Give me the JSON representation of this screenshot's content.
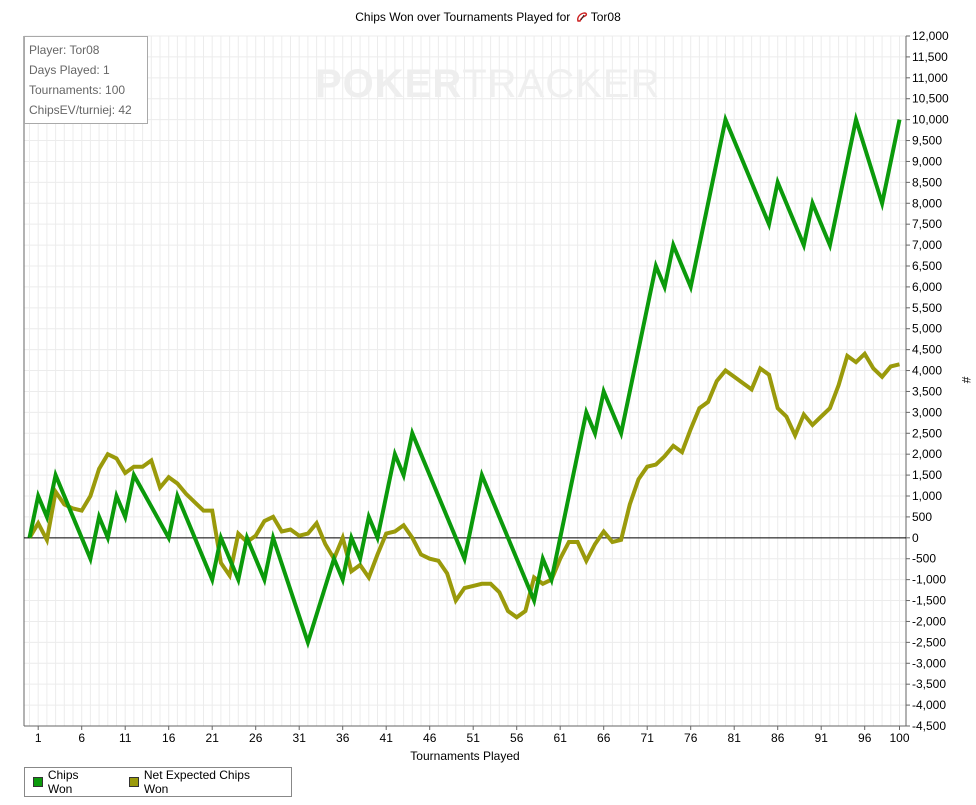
{
  "title": "Chips Won over Tournaments Played for",
  "player_name": "Tor08",
  "watermark": {
    "bold": "POKER",
    "light": "TRACKER"
  },
  "info": {
    "player": "Player: Tor08",
    "days": "Days Played: 1",
    "tournaments": "Tournaments: 100",
    "chipsev": "ChipsEV/turniej: 42"
  },
  "legend": [
    {
      "label": "Chips Won",
      "color": "#0b9a0b"
    },
    {
      "label": "Net Expected Chips Won",
      "color": "#9a9a0b"
    }
  ],
  "chart_data": {
    "type": "line",
    "title": "Chips Won over Tournaments Played for Tor08",
    "xlabel": "Tournaments Played",
    "ylabel": "#",
    "xlim": [
      0,
      100
    ],
    "ylim": [
      -4500,
      12000
    ],
    "x_ticks": [
      1,
      6,
      11,
      16,
      21,
      26,
      31,
      36,
      41,
      46,
      51,
      56,
      61,
      66,
      71,
      76,
      81,
      86,
      91,
      96,
      100
    ],
    "y_ticks": [
      12000,
      11500,
      11000,
      10500,
      10000,
      9500,
      9000,
      8500,
      8000,
      7500,
      7000,
      6500,
      6000,
      5500,
      5000,
      4500,
      4000,
      3500,
      3000,
      2500,
      2000,
      1500,
      1000,
      500,
      0,
      -500,
      -1000,
      -1500,
      -2000,
      -2500,
      -3000,
      -3500,
      -4000,
      -4500
    ],
    "y_tick_labels": [
      "12,000",
      "11,500",
      "11,000",
      "10,500",
      "10,000",
      "9,500",
      "9,000",
      "8,500",
      "8,000",
      "7,500",
      "7,000",
      "6,500",
      "6,000",
      "5,500",
      "5,000",
      "4,500",
      "4,000",
      "3,500",
      "3,000",
      "2,500",
      "2,000",
      "1,500",
      "1,000",
      "500",
      "0",
      "-500",
      "-1,000",
      "-1,500",
      "-2,000",
      "-2,500",
      "-3,000",
      "-3,500",
      "-4,000",
      "-4,500"
    ],
    "grid": true,
    "legend_position": "bottom-left",
    "series": [
      {
        "name": "Chips Won",
        "color": "#0b9a0b",
        "points": [
          [
            0,
            0
          ],
          [
            1,
            1000
          ],
          [
            2,
            500
          ],
          [
            3,
            1500
          ],
          [
            7,
            -500
          ],
          [
            8,
            500
          ],
          [
            9,
            0
          ],
          [
            10,
            1000
          ],
          [
            11,
            500
          ],
          [
            12,
            1500
          ],
          [
            16,
            0
          ],
          [
            17,
            1000
          ],
          [
            21,
            -1000
          ],
          [
            22,
            0
          ],
          [
            24,
            -1000
          ],
          [
            25,
            0
          ],
          [
            27,
            -1000
          ],
          [
            28,
            0
          ],
          [
            32,
            -2500
          ],
          [
            35,
            -500
          ],
          [
            36,
            -1000
          ],
          [
            37,
            0
          ],
          [
            38,
            -500
          ],
          [
            39,
            500
          ],
          [
            40,
            0
          ],
          [
            42,
            2000
          ],
          [
            43,
            1500
          ],
          [
            44,
            2500
          ],
          [
            50,
            -500
          ],
          [
            52,
            1500
          ],
          [
            58,
            -1500
          ],
          [
            59,
            -500
          ],
          [
            60,
            -1000
          ],
          [
            64,
            3000
          ],
          [
            65,
            2500
          ],
          [
            66,
            3500
          ],
          [
            68,
            2500
          ],
          [
            72,
            6500
          ],
          [
            73,
            6000
          ],
          [
            74,
            7000
          ],
          [
            76,
            6000
          ],
          [
            80,
            10000
          ],
          [
            85,
            7500
          ],
          [
            86,
            8500
          ],
          [
            89,
            7000
          ],
          [
            90,
            8000
          ],
          [
            92,
            7000
          ],
          [
            95,
            10000
          ],
          [
            98,
            8000
          ],
          [
            100,
            10000
          ]
        ]
      },
      {
        "name": "Net Expected Chips Won",
        "color": "#9a9a0b",
        "points": [
          [
            0,
            0
          ],
          [
            1,
            350
          ],
          [
            2,
            -50
          ],
          [
            3,
            1100
          ],
          [
            4,
            800
          ],
          [
            5,
            700
          ],
          [
            6,
            650
          ],
          [
            7,
            1000
          ],
          [
            8,
            1650
          ],
          [
            9,
            2000
          ],
          [
            10,
            1900
          ],
          [
            11,
            1550
          ],
          [
            12,
            1700
          ],
          [
            13,
            1700
          ],
          [
            14,
            1850
          ],
          [
            15,
            1200
          ],
          [
            16,
            1450
          ],
          [
            17,
            1300
          ],
          [
            18,
            1050
          ],
          [
            19,
            850
          ],
          [
            20,
            650
          ],
          [
            21,
            650
          ],
          [
            22,
            -600
          ],
          [
            23,
            -900
          ],
          [
            24,
            100
          ],
          [
            25,
            -100
          ],
          [
            26,
            50
          ],
          [
            27,
            400
          ],
          [
            28,
            500
          ],
          [
            29,
            150
          ],
          [
            30,
            200
          ],
          [
            31,
            50
          ],
          [
            32,
            100
          ],
          [
            33,
            350
          ],
          [
            34,
            -150
          ],
          [
            35,
            -500
          ],
          [
            36,
            0
          ],
          [
            37,
            -800
          ],
          [
            38,
            -650
          ],
          [
            39,
            -950
          ],
          [
            40,
            -400
          ],
          [
            41,
            100
          ],
          [
            42,
            150
          ],
          [
            43,
            300
          ],
          [
            44,
            0
          ],
          [
            45,
            -400
          ],
          [
            46,
            -500
          ],
          [
            47,
            -550
          ],
          [
            48,
            -850
          ],
          [
            49,
            -1500
          ],
          [
            50,
            -1200
          ],
          [
            51,
            -1150
          ],
          [
            52,
            -1100
          ],
          [
            53,
            -1100
          ],
          [
            54,
            -1300
          ],
          [
            55,
            -1750
          ],
          [
            56,
            -1900
          ],
          [
            57,
            -1750
          ],
          [
            58,
            -950
          ],
          [
            59,
            -1100
          ],
          [
            60,
            -1000
          ],
          [
            61,
            -500
          ],
          [
            62,
            -100
          ],
          [
            63,
            -100
          ],
          [
            64,
            -550
          ],
          [
            65,
            -150
          ],
          [
            66,
            150
          ],
          [
            67,
            -100
          ],
          [
            68,
            -50
          ],
          [
            69,
            800
          ],
          [
            70,
            1400
          ],
          [
            71,
            1700
          ],
          [
            72,
            1750
          ],
          [
            73,
            1950
          ],
          [
            74,
            2200
          ],
          [
            75,
            2050
          ],
          [
            76,
            2600
          ],
          [
            77,
            3100
          ],
          [
            78,
            3250
          ],
          [
            79,
            3750
          ],
          [
            80,
            4000
          ],
          [
            81,
            3850
          ],
          [
            82,
            3700
          ],
          [
            83,
            3550
          ],
          [
            84,
            4050
          ],
          [
            85,
            3900
          ],
          [
            86,
            3100
          ],
          [
            87,
            2900
          ],
          [
            88,
            2450
          ],
          [
            89,
            2950
          ],
          [
            90,
            2700
          ],
          [
            91,
            2900
          ],
          [
            92,
            3100
          ],
          [
            93,
            3650
          ],
          [
            94,
            4350
          ],
          [
            95,
            4200
          ],
          [
            96,
            4400
          ],
          [
            97,
            4050
          ],
          [
            98,
            3850
          ],
          [
            99,
            4100
          ],
          [
            100,
            4150
          ]
        ]
      }
    ]
  }
}
